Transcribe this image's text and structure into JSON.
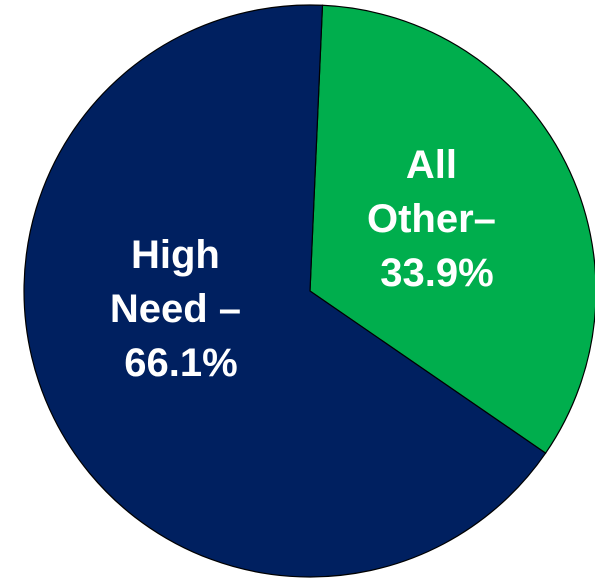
{
  "chart_data": {
    "type": "pie",
    "title": "",
    "slices": [
      {
        "name": "All Other",
        "value": 33.9,
        "color": "#00AE4D",
        "label_lines": [
          "All",
          "Other–",
          "33.9%"
        ]
      },
      {
        "name": "High Need",
        "value": 66.1,
        "color": "#002060",
        "label_lines": [
          "High",
          "Need –",
          "66.1%"
        ]
      }
    ],
    "start_angle_deg": 2.5,
    "direction": "clockwise",
    "outline_color": "#000000",
    "legend": "none"
  }
}
